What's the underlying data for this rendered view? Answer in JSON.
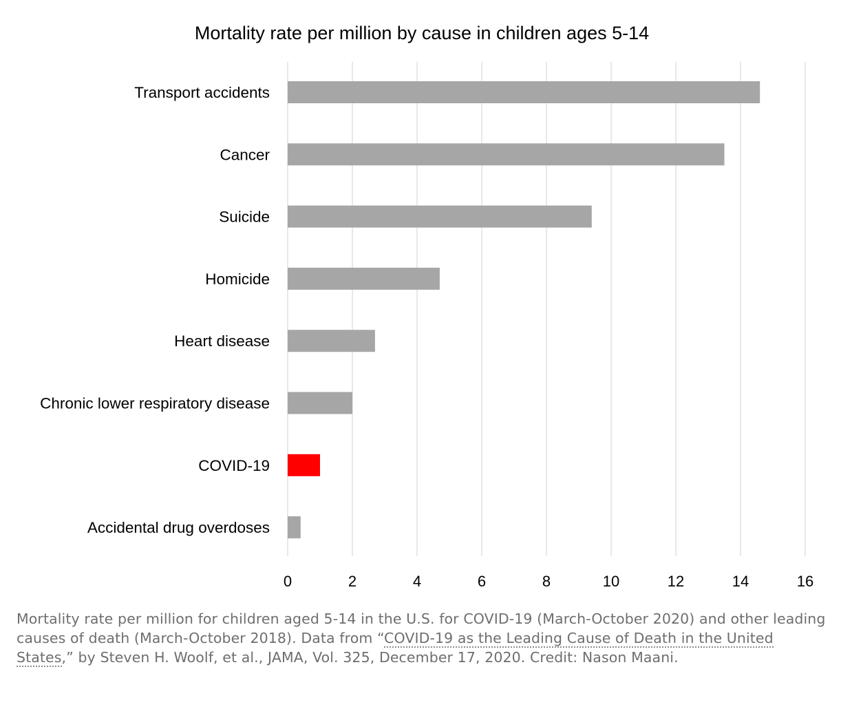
{
  "chart_data": {
    "type": "bar",
    "orientation": "horizontal",
    "title": "Mortality rate per million by cause in children ages 5-14",
    "xlabel": "",
    "ylabel": "",
    "categories": [
      "Transport accidents",
      "Cancer",
      "Suicide",
      "Homicide",
      "Heart disease",
      "Chronic lower respiratory disease",
      "COVID-19",
      "Accidental drug overdoses"
    ],
    "values": [
      14.6,
      13.5,
      9.4,
      4.7,
      2.7,
      2.0,
      1.0,
      0.4
    ],
    "colors": [
      "#a6a6a6",
      "#a6a6a6",
      "#a6a6a6",
      "#a6a6a6",
      "#a6a6a6",
      "#a6a6a6",
      "#ff0000",
      "#a6a6a6"
    ],
    "xlim": [
      0,
      16
    ],
    "xticks": [
      0,
      2,
      4,
      6,
      8,
      10,
      12,
      14,
      16
    ],
    "grid": true,
    "legend": "none"
  },
  "caption": {
    "text_before": "Mortality rate per million for children aged 5-14 in the U.S. for COVID-19 (March-October 2020) and other leading causes of death (March-October 2018). Data from “",
    "link_text": "COVID-19 as the Leading Cause of Death in the United States",
    "text_after": ",” by Steven H. Woolf, et al., JAMA, Vol. 325, December 17, 2020. Credit: Nason Maani."
  },
  "colors": {
    "bar_default": "#a6a6a6",
    "bar_highlight": "#ff0000",
    "grid": "#dcdcdc",
    "text": "#000000",
    "caption": "#6e6e6e"
  }
}
